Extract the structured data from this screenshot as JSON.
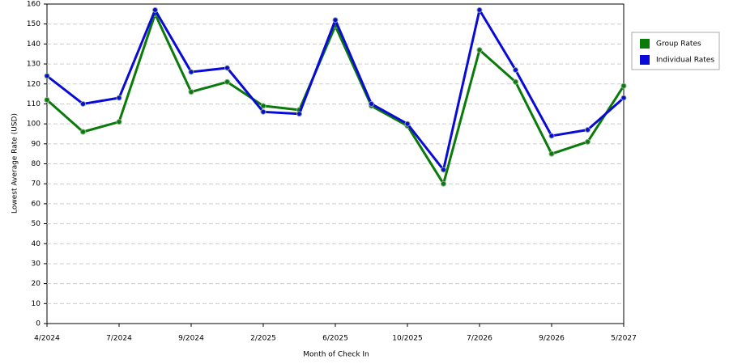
{
  "chart_data": {
    "type": "line",
    "x_label": "Month of Check In",
    "y_label": "Lowest Average Rate (USD)",
    "categories": [
      "4/2024",
      null,
      "7/2024",
      null,
      "9/2024",
      null,
      "2/2025",
      null,
      "6/2025",
      null,
      "10/2025",
      null,
      "7/2026",
      null,
      "9/2026",
      null,
      "5/2027"
    ],
    "series": [
      {
        "name": "Group Rates",
        "color": "#0a7a0a",
        "values": [
          112,
          96,
          101,
          155,
          116,
          121,
          109,
          107,
          149,
          109,
          99,
          70,
          137,
          121,
          85,
          91,
          119
        ]
      },
      {
        "name": "Individual Rates",
        "color": "#0a0ad6",
        "values": [
          124,
          110,
          113,
          157,
          126,
          128,
          106,
          105,
          152,
          110,
          100,
          77,
          157,
          127,
          94,
          97,
          113
        ]
      }
    ],
    "ylim": [
      0,
      160
    ],
    "yticks": [
      0,
      10,
      20,
      30,
      40,
      50,
      60,
      70,
      80,
      90,
      100,
      110,
      120,
      130,
      140,
      150,
      160
    ],
    "grid": true,
    "legend": "right"
  }
}
